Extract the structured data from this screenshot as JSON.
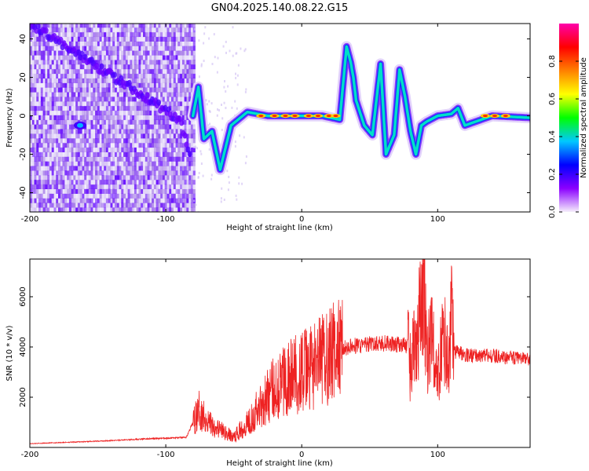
{
  "title": "GN04.2025.140.08.22.G15",
  "chart_data": [
    {
      "type": "heatmap",
      "xlabel": "Height of straight line (km)",
      "ylabel": "Frequency (Hz)",
      "xlim": [
        -200,
        168
      ],
      "ylim": [
        -50,
        48
      ],
      "xticks": [
        -200,
        -100,
        0,
        100
      ],
      "yticks": [
        -40,
        -20,
        0,
        20,
        40
      ],
      "colorbar": {
        "label": "Normalized spectral amplitude",
        "range": [
          0,
          1
        ],
        "ticks": [
          "0.0",
          "0.2",
          "0.4",
          "0.6",
          "0.8"
        ],
        "ticks_values": [
          0,
          0.2,
          0.4,
          0.6,
          0.8
        ],
        "stops": [
          "#f6effc",
          "#8b00ff",
          "#0000ff",
          "#00c8ff",
          "#00ff00",
          "#ffff00",
          "#ff8000",
          "#ff0000",
          "#ff00aa"
        ]
      },
      "ridge": {
        "x": [
          -80,
          -76,
          -72,
          -66,
          -60,
          -52,
          -40,
          -25,
          -10,
          0,
          15,
          28,
          33,
          36,
          38,
          40,
          46,
          52,
          58,
          62,
          68,
          72,
          76,
          80,
          84,
          88,
          92,
          100,
          110,
          115,
          120,
          140,
          168
        ],
        "y": [
          0,
          15,
          -12,
          -8,
          -28,
          -5,
          2,
          0,
          0,
          0,
          0,
          -2,
          36,
          28,
          20,
          8,
          -5,
          -10,
          27,
          -20,
          -10,
          24,
          10,
          -8,
          -20,
          -5,
          -3,
          0,
          1,
          4,
          -5,
          0,
          -1
        ]
      },
      "diagonal_track": {
        "x": [
          -200,
          -160,
          -120,
          -90,
          -82
        ],
        "y": [
          48,
          30,
          12,
          -2,
          -20
        ]
      },
      "noisy_region_x": [
        -200,
        -80
      ]
    },
    {
      "type": "line",
      "xlabel": "Height of straight line (km)",
      "ylabel": "SNR (10 * v/v)",
      "xlim": [
        -200,
        168
      ],
      "ylim": [
        0,
        7500
      ],
      "xticks": [
        -200,
        -100,
        0,
        100
      ],
      "yticks": [
        2000,
        4000,
        6000
      ],
      "color": "#ee2222",
      "series": [
        {
          "x": [
            -200,
            -150,
            -110,
            -85,
            -78,
            -75,
            -70,
            -60,
            -50,
            -40,
            -30,
            -20,
            -10,
            0,
            10,
            20,
            30,
            40,
            50,
            60,
            70,
            78,
            80,
            84,
            88,
            90,
            92,
            96,
            100,
            104,
            108,
            110,
            112,
            120,
            140,
            168
          ],
          "y": [
            150,
            250,
            350,
            400,
            1200,
            1500,
            1100,
            700,
            400,
            1000,
            1700,
            2400,
            2800,
            3000,
            3200,
            3700,
            3950,
            4050,
            4100,
            4150,
            4100,
            4050,
            3200,
            4200,
            5500,
            6800,
            3500,
            4500,
            2500,
            4800,
            3000,
            5500,
            3800,
            3700,
            3650,
            3500
          ]
        }
      ]
    }
  ]
}
